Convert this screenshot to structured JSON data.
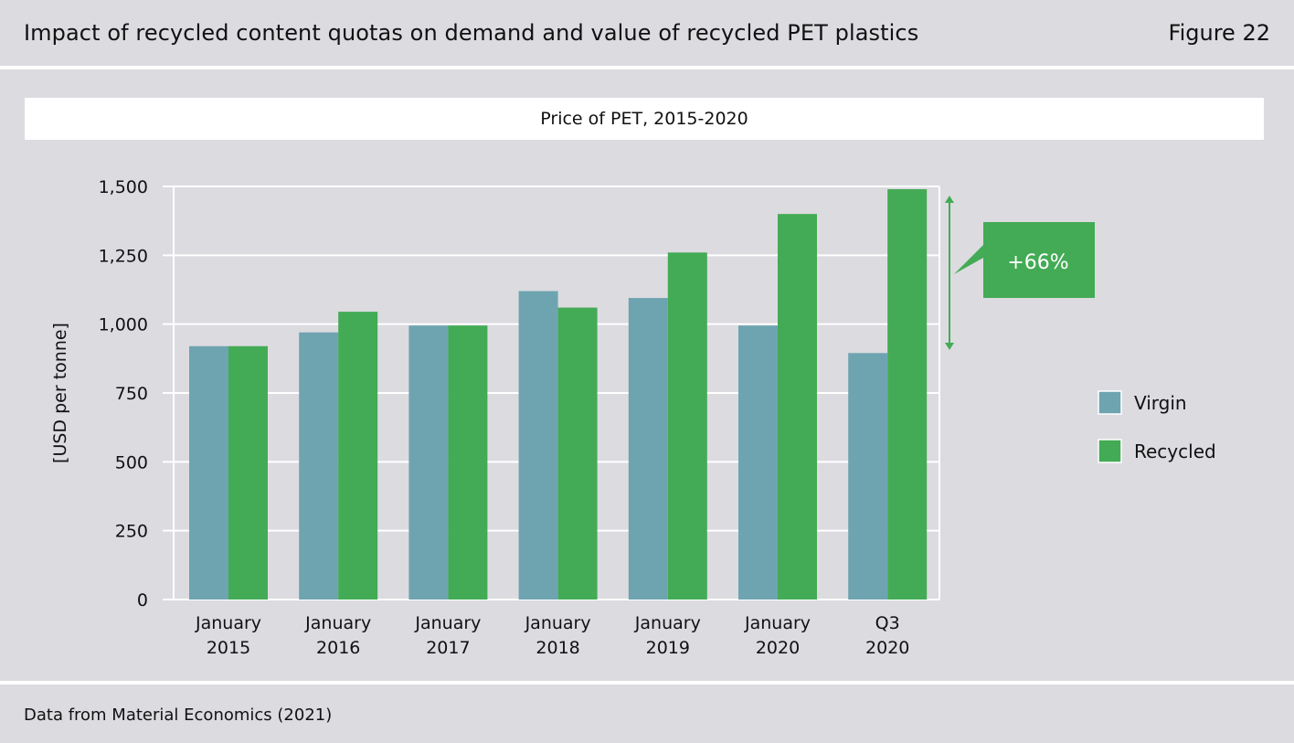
{
  "header": {
    "title": "Impact of recycled content quotas on demand and value of recycled PET plastics",
    "figure_label": "Figure 22"
  },
  "footer": {
    "source": "Data from Material Economics (2021)"
  },
  "colors": {
    "background": "#dcdbe0",
    "virgin": "#6ea4b0",
    "recycled": "#43ab55",
    "grid": "#ffffff",
    "callout": "#43ab55"
  },
  "chart_data": {
    "type": "bar",
    "title": "Price of PET, 2015-2020",
    "ylabel": "[USD per tonne]",
    "xlabel": "",
    "ylim": [
      0,
      1500
    ],
    "yticks": [
      0,
      250,
      500,
      750,
      1000,
      1250,
      1500
    ],
    "ytick_labels": [
      "0",
      "250",
      "500",
      "750",
      "1,000",
      "1,250",
      "1,500"
    ],
    "grid": true,
    "legend_position": "right",
    "categories": [
      [
        "January",
        "2015"
      ],
      [
        "January",
        "2016"
      ],
      [
        "January",
        "2017"
      ],
      [
        "January",
        "2018"
      ],
      [
        "January",
        "2019"
      ],
      [
        "January",
        "2020"
      ],
      [
        "Q3",
        "2020"
      ]
    ],
    "series": [
      {
        "name": "Virgin",
        "color": "#6ea4b0",
        "values": [
          920,
          970,
          995,
          1120,
          1095,
          995,
          895
        ]
      },
      {
        "name": "Recycled",
        "color": "#43ab55",
        "values": [
          920,
          1045,
          995,
          1060,
          1260,
          1400,
          1490
        ]
      }
    ],
    "annotation": {
      "text": "+66%",
      "from_value": 895,
      "to_value": 1490
    }
  }
}
